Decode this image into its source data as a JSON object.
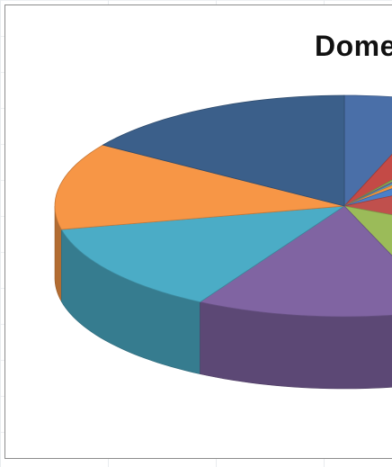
{
  "chart_data": {
    "type": "pie",
    "style": "3d",
    "title": "Dome",
    "slices": [
      {
        "color": "#4a6fa8",
        "share": 5.4
      },
      {
        "color": "#c44a46",
        "share": 4.3
      },
      {
        "color": "#8fb050",
        "share": 0.7
      },
      {
        "color": "#8063a2",
        "share": 0.5
      },
      {
        "color": "#4eb0cc",
        "share": 0.6
      },
      {
        "color": "#f7963c",
        "share": 1.4
      },
      {
        "color": "#4b7fc8",
        "share": 4.0
      },
      {
        "color": "#c0504d",
        "share": 15.3
      },
      {
        "color": "#9bbb59",
        "share": 12.2
      },
      {
        "color": "#8064a2",
        "share": 13.9
      },
      {
        "color": "#4bacc6",
        "share": 13.3
      },
      {
        "color": "#f79646",
        "share": 12.7
      },
      {
        "color": "#3b5f8a",
        "share": 15.7
      }
    ]
  }
}
